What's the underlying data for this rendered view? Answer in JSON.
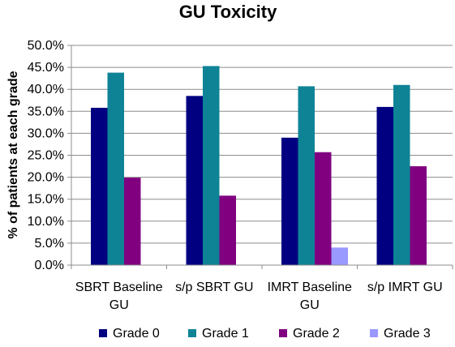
{
  "chart_data": {
    "type": "bar",
    "title": "GU Toxicity",
    "xlabel": "",
    "ylabel": "% of patients  at each grade",
    "categories": [
      [
        "SBRT Baseline",
        "GU"
      ],
      [
        "s/p SBRT GU"
      ],
      [
        "IMRT Baseline",
        "GU"
      ],
      [
        "s/p IMRT GU"
      ]
    ],
    "ylim": [
      0,
      50
    ],
    "ytick_step": 5,
    "ytick_labels": [
      "0.0%",
      "5.0%",
      "10.0%",
      "15.0%",
      "20.0%",
      "25.0%",
      "30.0%",
      "35.0%",
      "40.0%",
      "45.0%",
      "50.0%"
    ],
    "grid": true,
    "legend_position": "bottom",
    "series": [
      {
        "name": "Grade 0",
        "color": "#000080",
        "values": [
          35.8,
          38.5,
          29.0,
          36.0
        ]
      },
      {
        "name": "Grade 1",
        "color": "#0E8396",
        "values": [
          43.8,
          45.3,
          40.7,
          41.0
        ]
      },
      {
        "name": "Grade 2",
        "color": "#800080",
        "values": [
          19.9,
          15.8,
          25.7,
          22.5
        ]
      },
      {
        "name": "Grade 3",
        "color": "#9999FF",
        "values": [
          0,
          0,
          4.0,
          0
        ]
      }
    ]
  }
}
